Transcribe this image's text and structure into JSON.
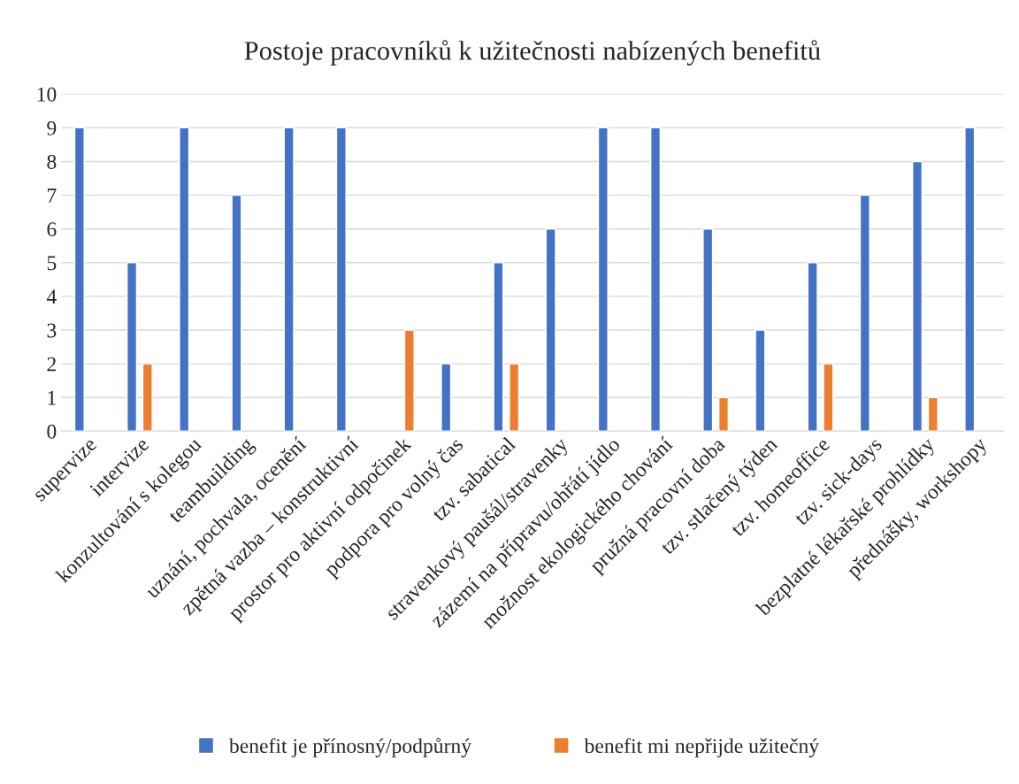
{
  "chart_data": {
    "type": "bar",
    "title": "Postoje pracovníků k užitečnosti nabízených benefitů",
    "categories": [
      "supervize",
      "intervize",
      "konzultování s kolegou",
      "teambuilding",
      "uznání, pochvala, ocenění",
      "zpětná vazba – konstruktivní",
      "prostor pro aktivní odpočinek",
      "podpora pro volný čas",
      "tzv. sabatical",
      "stravenkový paušál/stravenky",
      "zázemí na přípravu/ohřátí jídlo",
      "možnost ekologického chování",
      "pružná pracovní doba",
      "tzv. stlačený týden",
      "tzv. homeoffice",
      "tzv. sick-days",
      "bezplatné lékařské prohlídky",
      "přednášky, workshopy"
    ],
    "series": [
      {
        "name": "benefit je přínosný/podpůrný",
        "color": "#4472c4",
        "values": [
          9,
          5,
          9,
          7,
          9,
          9,
          null,
          2,
          5,
          6,
          9,
          9,
          6,
          3,
          5,
          7,
          8,
          9
        ]
      },
      {
        "name": "benefit mi nepřijde užitečný",
        "color": "#ed7d31",
        "values": [
          null,
          2,
          null,
          null,
          null,
          null,
          3,
          null,
          2,
          null,
          null,
          null,
          1,
          null,
          2,
          null,
          1,
          null
        ]
      }
    ],
    "ylim": [
      0,
      10
    ],
    "yticks": [
      0,
      1,
      2,
      3,
      4,
      5,
      6,
      7,
      8,
      9,
      10
    ],
    "grid": "y",
    "legend": "bottom"
  }
}
